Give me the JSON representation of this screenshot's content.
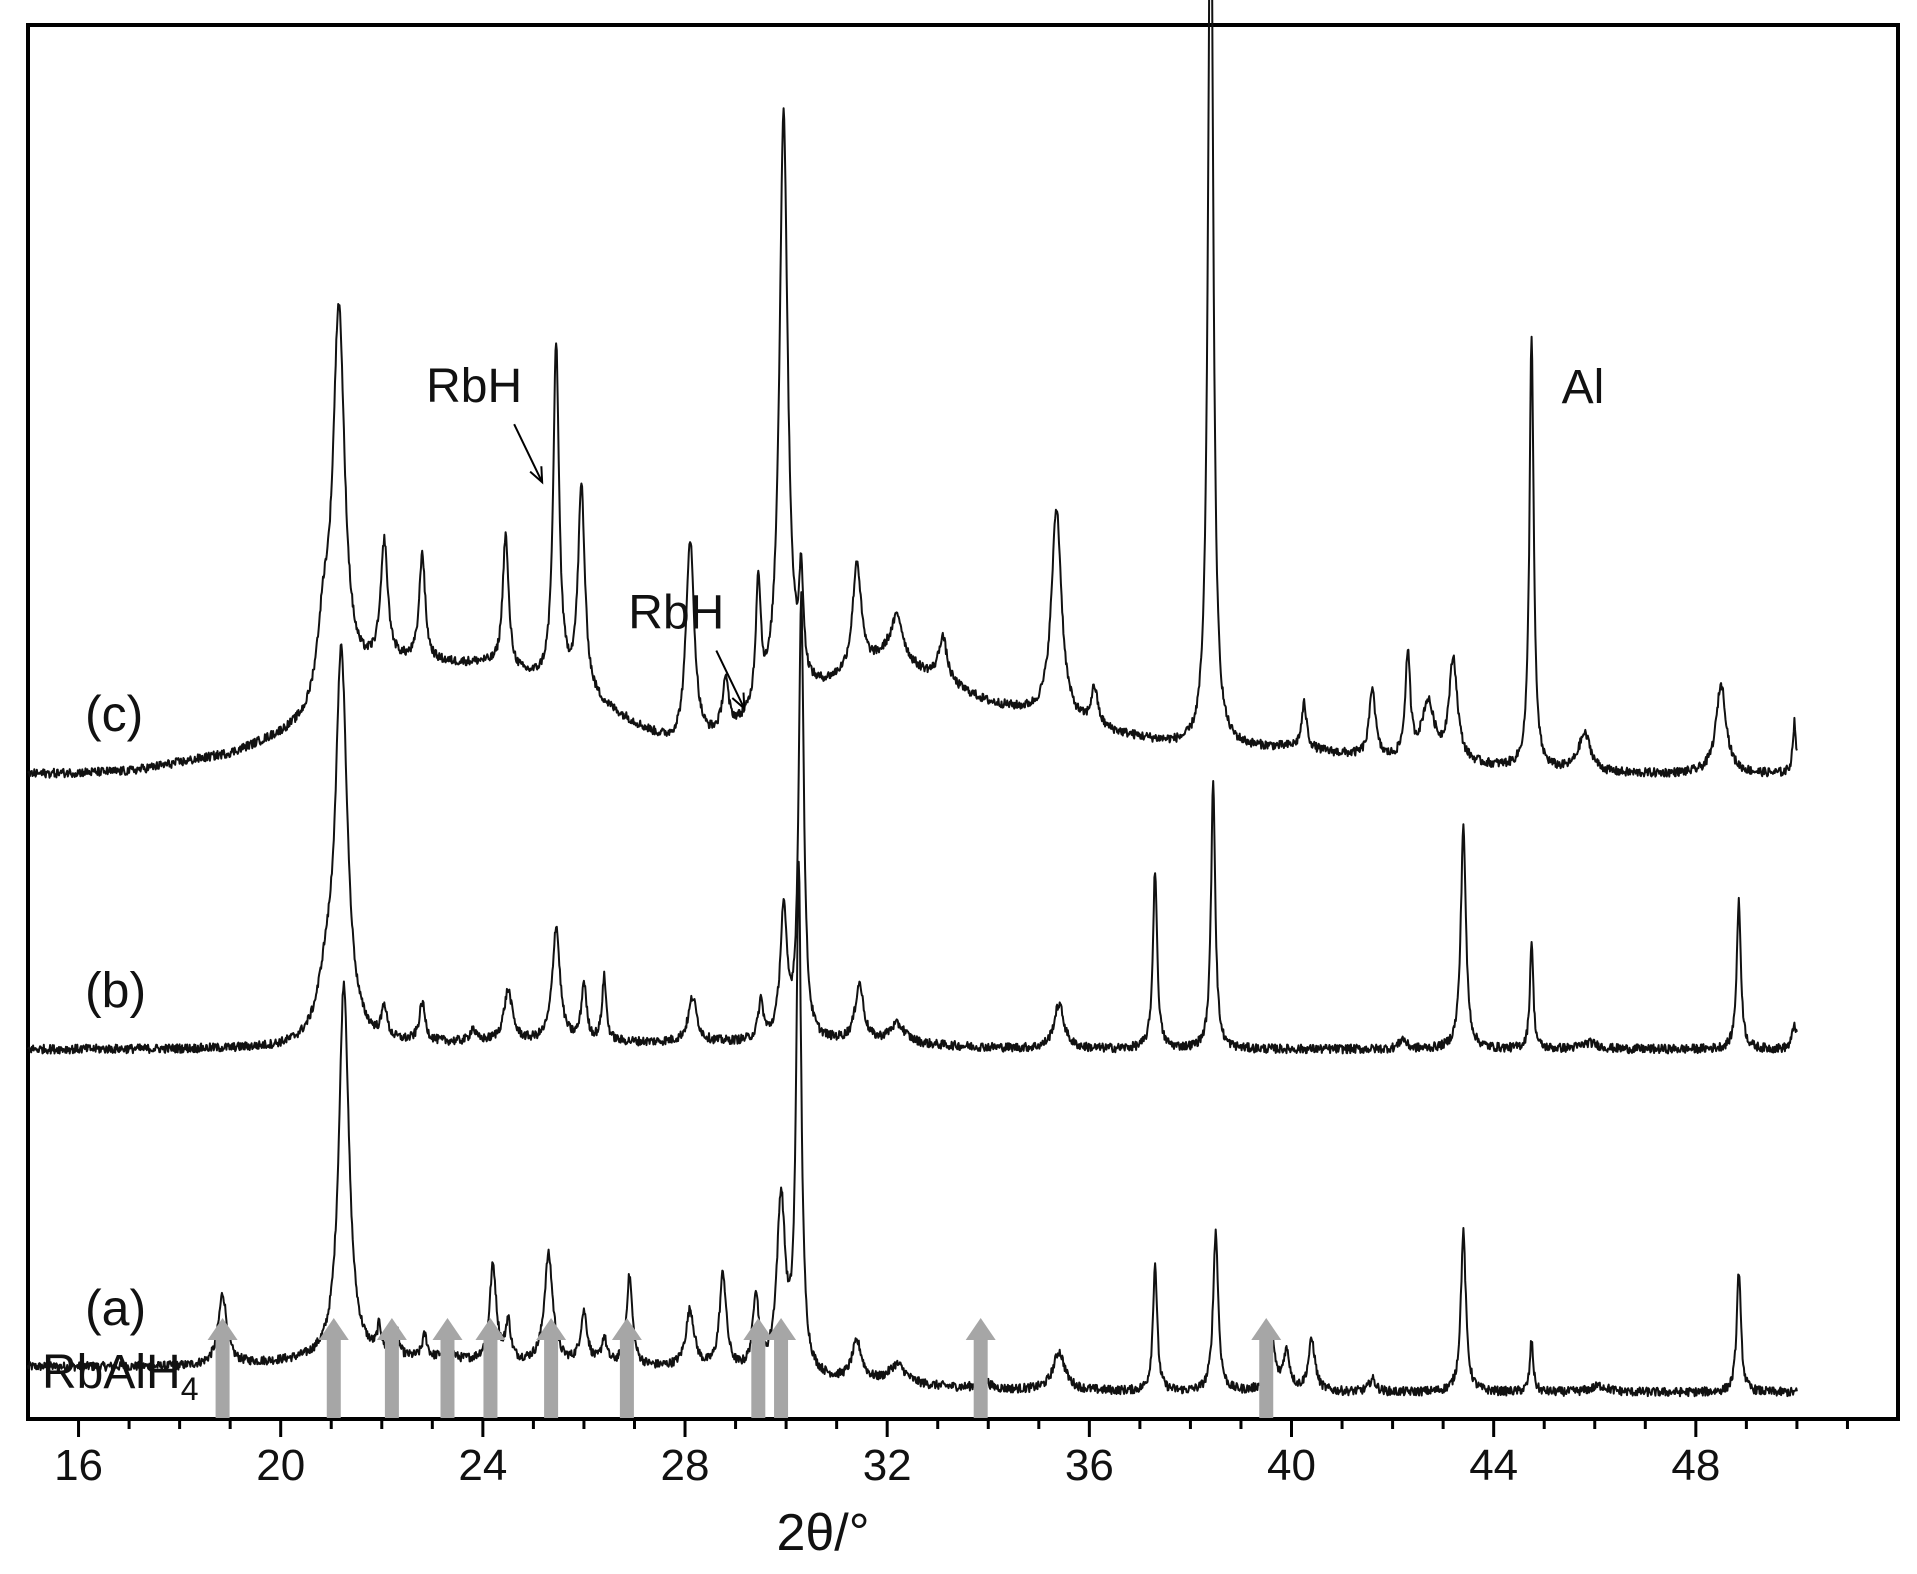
{
  "chart_data": {
    "type": "line",
    "xlabel": "2θ/°",
    "ylabel": "",
    "xlim": [
      15,
      52
    ],
    "xticks": [
      16,
      20,
      24,
      28,
      32,
      36,
      40,
      44,
      48
    ],
    "grid": false,
    "legend": "none",
    "x_range_traces": [
      15,
      50
    ],
    "series": [
      {
        "name": "(a)",
        "baseline": 0.0,
        "background": [
          [
            15,
            0.22
          ],
          [
            18,
            0.22
          ],
          [
            20,
            0.25
          ],
          [
            22,
            0.28
          ],
          [
            24,
            0.25
          ],
          [
            28,
            0.2
          ],
          [
            31,
            0.1
          ],
          [
            34,
            0.04
          ],
          [
            38,
            0.02
          ],
          [
            42,
            0.02
          ],
          [
            46,
            0.02
          ],
          [
            50,
            0.02
          ]
        ],
        "peaks": [
          {
            "x": 18.85,
            "h": 0.55,
            "w": 0.1
          },
          {
            "x": 21.25,
            "h": 2.95,
            "w": 0.12
          },
          {
            "x": 21.95,
            "h": 0.2,
            "w": 0.05
          },
          {
            "x": 22.3,
            "h": 0.18,
            "w": 0.05
          },
          {
            "x": 22.85,
            "h": 0.18,
            "w": 0.06
          },
          {
            "x": 23.3,
            "h": 0.25,
            "w": 0.06
          },
          {
            "x": 24.2,
            "h": 0.75,
            "w": 0.08
          },
          {
            "x": 24.5,
            "h": 0.3,
            "w": 0.06
          },
          {
            "x": 25.3,
            "h": 0.85,
            "w": 0.1
          },
          {
            "x": 26.0,
            "h": 0.4,
            "w": 0.08
          },
          {
            "x": 26.4,
            "h": 0.2,
            "w": 0.06
          },
          {
            "x": 26.9,
            "h": 0.7,
            "w": 0.07
          },
          {
            "x": 28.1,
            "h": 0.45,
            "w": 0.1
          },
          {
            "x": 28.75,
            "h": 0.75,
            "w": 0.08
          },
          {
            "x": 29.4,
            "h": 0.6,
            "w": 0.07
          },
          {
            "x": 29.9,
            "h": 1.35,
            "w": 0.1
          },
          {
            "x": 30.25,
            "h": 3.9,
            "w": 0.06
          },
          {
            "x": 31.4,
            "h": 0.3,
            "w": 0.12
          },
          {
            "x": 32.2,
            "h": 0.15,
            "w": 0.2
          },
          {
            "x": 33.9,
            "h": 0.1,
            "w": 0.1
          },
          {
            "x": 35.4,
            "h": 0.3,
            "w": 0.14
          },
          {
            "x": 37.3,
            "h": 1.0,
            "w": 0.05
          },
          {
            "x": 38.5,
            "h": 1.25,
            "w": 0.06
          },
          {
            "x": 39.6,
            "h": 0.45,
            "w": 0.08
          },
          {
            "x": 39.9,
            "h": 0.3,
            "w": 0.08
          },
          {
            "x": 40.4,
            "h": 0.4,
            "w": 0.08
          },
          {
            "x": 41.6,
            "h": 0.1,
            "w": 0.08
          },
          {
            "x": 43.4,
            "h": 1.25,
            "w": 0.06
          },
          {
            "x": 44.75,
            "h": 0.4,
            "w": 0.04
          },
          {
            "x": 46.1,
            "h": 0.05,
            "w": 0.2
          },
          {
            "x": 48.85,
            "h": 0.95,
            "w": 0.05
          }
        ]
      },
      {
        "name": "(b)",
        "baseline": 2.7,
        "background": [
          [
            15,
            0.0
          ],
          [
            20,
            0.0
          ],
          [
            24,
            0.05
          ],
          [
            28,
            0.05
          ],
          [
            31,
            0.05
          ],
          [
            35,
            0.0
          ],
          [
            40,
            0.0
          ],
          [
            45,
            0.0
          ],
          [
            50,
            0.0
          ]
        ],
        "peaks": [
          {
            "x": 21.2,
            "h": 3.0,
            "w": 0.14
          },
          {
            "x": 20.9,
            "h": 0.4,
            "w": 0.2
          },
          {
            "x": 22.05,
            "h": 0.25,
            "w": 0.06
          },
          {
            "x": 22.8,
            "h": 0.3,
            "w": 0.07
          },
          {
            "x": 23.8,
            "h": 0.1,
            "w": 0.06
          },
          {
            "x": 24.5,
            "h": 0.4,
            "w": 0.1
          },
          {
            "x": 25.45,
            "h": 0.9,
            "w": 0.09
          },
          {
            "x": 26.0,
            "h": 0.45,
            "w": 0.06
          },
          {
            "x": 26.4,
            "h": 0.5,
            "w": 0.05
          },
          {
            "x": 28.15,
            "h": 0.35,
            "w": 0.1
          },
          {
            "x": 29.5,
            "h": 0.3,
            "w": 0.06
          },
          {
            "x": 29.95,
            "h": 1.0,
            "w": 0.08
          },
          {
            "x": 30.3,
            "h": 3.45,
            "w": 0.06
          },
          {
            "x": 31.45,
            "h": 0.45,
            "w": 0.1
          },
          {
            "x": 32.2,
            "h": 0.15,
            "w": 0.2
          },
          {
            "x": 35.4,
            "h": 0.35,
            "w": 0.12
          },
          {
            "x": 37.3,
            "h": 1.4,
            "w": 0.05
          },
          {
            "x": 38.45,
            "h": 2.1,
            "w": 0.05
          },
          {
            "x": 42.2,
            "h": 0.08,
            "w": 0.08
          },
          {
            "x": 43.4,
            "h": 1.75,
            "w": 0.06
          },
          {
            "x": 44.75,
            "h": 0.85,
            "w": 0.04
          },
          {
            "x": 45.9,
            "h": 0.05,
            "w": 0.2
          },
          {
            "x": 48.85,
            "h": 1.15,
            "w": 0.05
          },
          {
            "x": 49.95,
            "h": 0.2,
            "w": 0.05
          }
        ]
      },
      {
        "name": "(c)",
        "baseline": 4.85,
        "background": [
          [
            15,
            0.0
          ],
          [
            17,
            0.02
          ],
          [
            19,
            0.15
          ],
          [
            20.5,
            0.35
          ],
          [
            22,
            0.85
          ],
          [
            24,
            0.85
          ],
          [
            26,
            0.6
          ],
          [
            28,
            0.15
          ],
          [
            30,
            0.5
          ],
          [
            32,
            0.9
          ],
          [
            34,
            0.55
          ],
          [
            36,
            0.35
          ],
          [
            38,
            0.2
          ],
          [
            40,
            0.2
          ],
          [
            42,
            0.1
          ],
          [
            46,
            0.0
          ],
          [
            50,
            0.0
          ]
        ],
        "peaks": [
          {
            "x": 21.15,
            "h": 3.0,
            "w": 0.14
          },
          {
            "x": 20.85,
            "h": 0.55,
            "w": 0.15
          },
          {
            "x": 22.05,
            "h": 0.9,
            "w": 0.08
          },
          {
            "x": 22.8,
            "h": 0.85,
            "w": 0.07
          },
          {
            "x": 24.45,
            "h": 1.05,
            "w": 0.07
          },
          {
            "x": 25.45,
            "h": 2.65,
            "w": 0.07
          },
          {
            "x": 25.95,
            "h": 1.6,
            "w": 0.08
          },
          {
            "x": 28.1,
            "h": 1.65,
            "w": 0.1
          },
          {
            "x": 28.8,
            "h": 0.4,
            "w": 0.07
          },
          {
            "x": 29.45,
            "h": 1.0,
            "w": 0.06
          },
          {
            "x": 29.95,
            "h": 4.65,
            "w": 0.1
          },
          {
            "x": 30.3,
            "h": 0.8,
            "w": 0.05
          },
          {
            "x": 31.4,
            "h": 0.85,
            "w": 0.1
          },
          {
            "x": 32.2,
            "h": 0.35,
            "w": 0.14
          },
          {
            "x": 33.1,
            "h": 0.35,
            "w": 0.1
          },
          {
            "x": 35.35,
            "h": 1.65,
            "w": 0.12
          },
          {
            "x": 36.1,
            "h": 0.3,
            "w": 0.08
          },
          {
            "x": 38.4,
            "h": 7.45,
            "w": 0.06
          },
          {
            "x": 40.25,
            "h": 0.35,
            "w": 0.06
          },
          {
            "x": 41.6,
            "h": 0.55,
            "w": 0.07
          },
          {
            "x": 42.3,
            "h": 0.8,
            "w": 0.06
          },
          {
            "x": 42.7,
            "h": 0.45,
            "w": 0.15
          },
          {
            "x": 43.2,
            "h": 0.8,
            "w": 0.1
          },
          {
            "x": 44.75,
            "h": 3.4,
            "w": 0.05
          },
          {
            "x": 45.8,
            "h": 0.3,
            "w": 0.15
          },
          {
            "x": 48.5,
            "h": 0.7,
            "w": 0.12
          },
          {
            "x": 49.95,
            "h": 0.4,
            "w": 0.04
          }
        ]
      }
    ],
    "reference_phase": {
      "label_main": "RbAlH",
      "label_sub": "4",
      "positions": [
        18.85,
        21.05,
        22.2,
        23.3,
        24.15,
        25.35,
        26.85,
        29.45,
        29.9,
        33.85,
        39.5
      ]
    },
    "annotations": [
      {
        "text": "Al",
        "x": 38.4,
        "series": "(c)",
        "arrow": false
      },
      {
        "text": "Al",
        "x": 44.75,
        "series": "(c)",
        "arrow": false
      },
      {
        "text": "RbH",
        "x": 25.45,
        "series": "(c)",
        "arrow": true
      },
      {
        "text": "RbH",
        "x": 29.45,
        "series": "(c)",
        "arrow": true
      }
    ]
  }
}
